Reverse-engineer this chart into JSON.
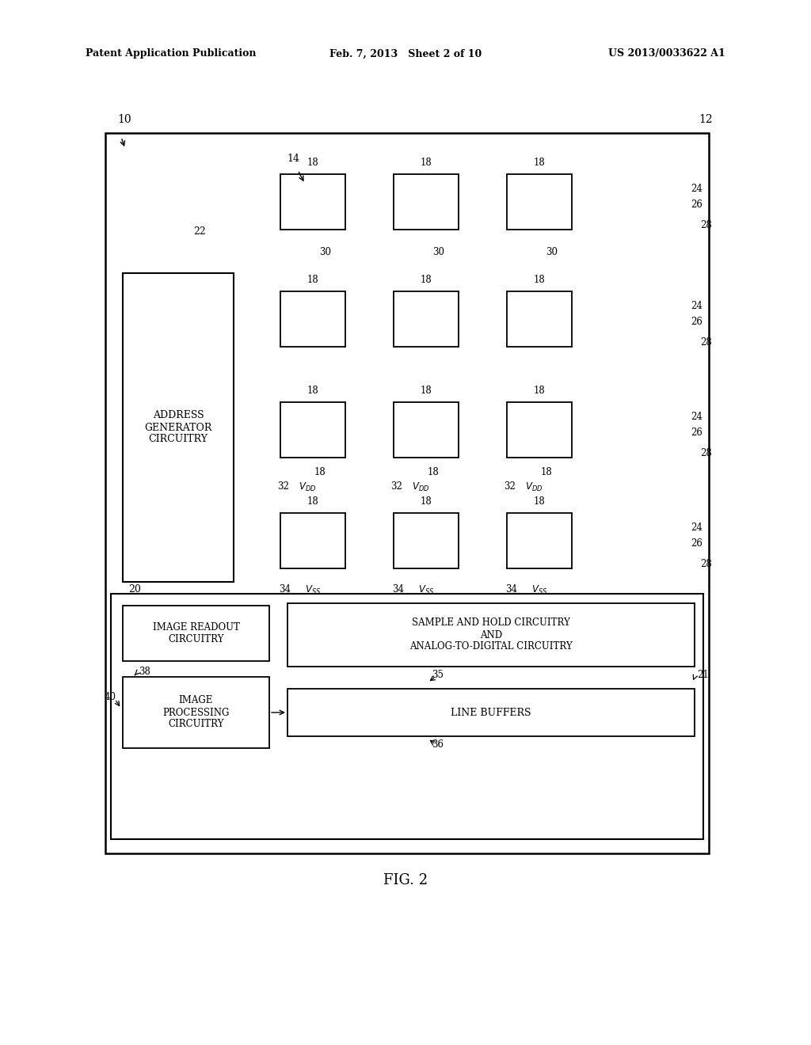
{
  "bg_color": "#ffffff",
  "header_left": "Patent Application Publication",
  "header_mid": "Feb. 7, 2013   Sheet 2 of 10",
  "header_right": "US 2013/0033622 A1",
  "fig_label": "FIG. 2"
}
